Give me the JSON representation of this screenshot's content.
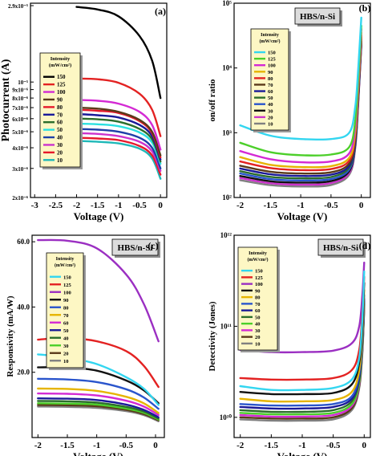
{
  "figure": {
    "panels": [
      {
        "id": "a",
        "panel_label": "(a)",
        "tag": "",
        "xlabel": "Voltage (V)",
        "ylabel": "Photocurrent (A)",
        "xticks": [
          "-3",
          "-2.5",
          "-2",
          "-1.5",
          "-1",
          "-0.5",
          "0"
        ],
        "yticks": [
          "2.9x10⁻⁵",
          "10⁻⁵",
          "9x10⁻⁶",
          "8x10⁻⁶",
          "7x10⁻⁶",
          "6x10⁻⁶",
          "5x10⁻⁶",
          "4x10⁻⁶",
          "3x10⁻⁶",
          "2x10⁻⁶"
        ],
        "legend_title": [
          "Intensity",
          "(mW/cm²)"
        ]
      },
      {
        "id": "b",
        "panel_label": "(b)",
        "tag": "HBS/n-Si",
        "xlabel": "Voltage (V)",
        "ylabel": "on/off ratio",
        "xticks": [
          "-2",
          "-1.5",
          "-1",
          "-0.5",
          "0"
        ],
        "yticks": [
          "10⁵",
          "10⁴",
          "10³",
          "10²"
        ],
        "legend_title": [
          "Intensity",
          "(mW/cm²)"
        ]
      },
      {
        "id": "c",
        "panel_label": "(c)",
        "tag": "HBS/n-Si",
        "xlabel": "Voltage (V)",
        "ylabel": "Responsivity (mA/W)",
        "xticks": [
          "-2",
          "-1.5",
          "-1",
          "-0.5",
          "0"
        ],
        "yticks": [
          "60.0",
          "40.0",
          "20.0"
        ],
        "legend_title": [
          "Intensity",
          "(mW/cm²)"
        ]
      },
      {
        "id": "d",
        "panel_label": "(d)",
        "tag": "HBS/n-Si",
        "xlabel": "Voltage (V)",
        "ylabel": "Detectivity (Jones)",
        "xticks": [
          "-2",
          "-1.5",
          "-1",
          "-0.5",
          "0"
        ],
        "yticks": [
          "10¹²",
          "10¹¹",
          "10¹⁰"
        ],
        "legend_title": [
          "Intensity",
          "(mW/cm²)"
        ]
      }
    ]
  },
  "chart_data": [
    {
      "type": "line",
      "panel": "a",
      "xlabel": "Voltage (V)",
      "ylabel": "Photocurrent (A)",
      "xlim": [
        -3.1,
        0.15
      ],
      "yscale": "log",
      "ylim": [
        2e-06,
        3e-05
      ],
      "legend_title": "Intensity (mW/cm²)",
      "x": [
        -2.0,
        -1.5,
        -1.0,
        -0.5,
        -0.2,
        0.0
      ],
      "series": [
        {
          "name": "150",
          "color": "#000000",
          "values": [
            2.85e-05,
            2.75e-05,
            2.5e-05,
            1.9e-05,
            1.35e-05,
            8e-06
          ]
        },
        {
          "name": "125",
          "color": "#e32222",
          "values": [
            1.05e-05,
            1.04e-05,
            9.9e-06,
            8.5e-06,
            6.8e-06,
            4.7e-06
          ]
        },
        {
          "name": "100",
          "color": "#d42ad4",
          "values": [
            7.8e-06,
            7.7e-06,
            7.4e-06,
            6.6e-06,
            5.5e-06,
            3.9e-06
          ]
        },
        {
          "name": "90",
          "color": "#5a3a1a",
          "values": [
            7e-06,
            6.9e-06,
            6.6e-06,
            5.9e-06,
            5e-06,
            3.6e-06
          ]
        },
        {
          "name": "80",
          "color": "#e6192b",
          "values": [
            6.8e-06,
            6.7e-06,
            6.5e-06,
            5.8e-06,
            4.9e-06,
            3.5e-06
          ]
        },
        {
          "name": "70",
          "color": "#1a1a99",
          "values": [
            6.4e-06,
            6.3e-06,
            6.1e-06,
            5.5e-06,
            4.7e-06,
            3.4e-06
          ]
        },
        {
          "name": "60",
          "color": "#2c6e2c",
          "values": [
            6e-06,
            5.95e-06,
            5.75e-06,
            5.2e-06,
            4.5e-06,
            3.3e-06
          ]
        },
        {
          "name": "50",
          "color": "#2ce0e0",
          "values": [
            5.6e-06,
            5.55e-06,
            5.4e-06,
            4.95e-06,
            4.3e-06,
            3.2e-06
          ]
        },
        {
          "name": "40",
          "color": "#1f3fa8",
          "values": [
            5.2e-06,
            5.15e-06,
            5e-06,
            4.6e-06,
            4e-06,
            3e-06
          ]
        },
        {
          "name": "30",
          "color": "#cc33cc",
          "values": [
            4.9e-06,
            4.85e-06,
            4.7e-06,
            4.35e-06,
            3.8e-06,
            2.9e-06
          ]
        },
        {
          "name": "20",
          "color": "#e6192b",
          "values": [
            4.6e-06,
            4.55e-06,
            4.45e-06,
            4.1e-06,
            3.6e-06,
            2.75e-06
          ]
        },
        {
          "name": "10",
          "color": "#1fb8b8",
          "values": [
            4.4e-06,
            4.35e-06,
            4.25e-06,
            3.95e-06,
            3.45e-06,
            2.6e-06
          ]
        }
      ]
    },
    {
      "type": "line",
      "panel": "b",
      "xlabel": "Voltage (V)",
      "ylabel": "on/off ratio",
      "xlim": [
        -2.1,
        0.15
      ],
      "yscale": "log",
      "ylim": [
        100,
        100000
      ],
      "legend_title": "Intensity (mW/cm²)",
      "x": [
        -2.0,
        -1.5,
        -1.0,
        -0.5,
        -0.2,
        -0.1,
        -0.05,
        0.0
      ],
      "series": [
        {
          "name": "150",
          "color": "#33d6f0",
          "values": [
            1300,
            900,
            800,
            800,
            1000,
            2500,
            10000,
            60000
          ]
        },
        {
          "name": "125",
          "color": "#4ccf2a",
          "values": [
            700,
            500,
            450,
            460,
            600,
            1500,
            7000,
            45000
          ]
        },
        {
          "name": "100",
          "color": "#d42ad4",
          "values": [
            520,
            390,
            350,
            360,
            480,
            1200,
            6000,
            40000
          ]
        },
        {
          "name": "90",
          "color": "#e6b400",
          "values": [
            420,
            320,
            295,
            305,
            410,
            1000,
            5000,
            35000
          ]
        },
        {
          "name": "80",
          "color": "#e32222",
          "values": [
            360,
            285,
            265,
            275,
            370,
            900,
            4500,
            32000
          ]
        },
        {
          "name": "70",
          "color": "#5a3a1a",
          "values": [
            310,
            250,
            235,
            245,
            335,
            820,
            4100,
            30000
          ]
        },
        {
          "name": "60",
          "color": "#1a1a99",
          "values": [
            280,
            228,
            215,
            225,
            310,
            760,
            3800,
            28000
          ]
        },
        {
          "name": "50",
          "color": "#2c6e2c",
          "values": [
            255,
            208,
            198,
            207,
            290,
            710,
            3600,
            26000
          ]
        },
        {
          "name": "40",
          "color": "#2a55cc",
          "values": [
            235,
            192,
            183,
            192,
            270,
            670,
            3400,
            25000
          ]
        },
        {
          "name": "30",
          "color": "#111111",
          "values": [
            215,
            178,
            170,
            179,
            255,
            640,
            3200,
            24000
          ]
        },
        {
          "name": "20",
          "color": "#cc33cc",
          "values": [
            200,
            166,
            158,
            167,
            240,
            610,
            3000,
            23000
          ]
        },
        {
          "name": "10",
          "color": "#808080",
          "values": [
            185,
            155,
            148,
            156,
            226,
            580,
            2900,
            22000
          ]
        }
      ]
    },
    {
      "type": "line",
      "panel": "c",
      "xlabel": "Voltage (V)",
      "ylabel": "Responsivity (mA/W)",
      "xlim": [
        -2.1,
        0.15
      ],
      "ylim": [
        0,
        62
      ],
      "legend_title": "Intensity (mW/cm²)",
      "x": [
        -2.0,
        -1.5,
        -1.0,
        -0.5,
        -0.2,
        0.05
      ],
      "series": [
        {
          "name": "150",
          "color": "#33d6f0",
          "values": [
            25.5,
            24.5,
            22.5,
            18.5,
            15.0,
            10.0
          ]
        },
        {
          "name": "125",
          "color": "#e32222",
          "values": [
            30.0,
            30.5,
            29.5,
            26.5,
            22.0,
            15.5
          ]
        },
        {
          "name": "100",
          "color": "#9b2fc2",
          "values": [
            60.5,
            60.3,
            58.0,
            50.0,
            41.0,
            29.5
          ]
        },
        {
          "name": "90",
          "color": "#111111",
          "values": [
            21.5,
            21.5,
            20.5,
            17.5,
            14.5,
            10.5
          ]
        },
        {
          "name": "80",
          "color": "#2a55cc",
          "values": [
            18.0,
            17.8,
            17.0,
            14.8,
            12.3,
            8.8
          ]
        },
        {
          "name": "70",
          "color": "#e6b400",
          "values": [
            15.0,
            14.9,
            14.3,
            12.5,
            10.5,
            7.5
          ]
        },
        {
          "name": "60",
          "color": "#d42ad4",
          "values": [
            13.5,
            13.4,
            12.9,
            11.3,
            9.5,
            6.9
          ]
        },
        {
          "name": "50",
          "color": "#1a1a99",
          "values": [
            12.0,
            11.9,
            11.5,
            10.1,
            8.5,
            6.2
          ]
        },
        {
          "name": "40",
          "color": "#2c6e2c",
          "values": [
            11.2,
            11.1,
            10.7,
            9.4,
            8.0,
            5.8
          ]
        },
        {
          "name": "30",
          "color": "#4ccf2a",
          "values": [
            10.5,
            10.4,
            10.1,
            8.9,
            7.6,
            5.5
          ]
        },
        {
          "name": "20",
          "color": "#5a3a1a",
          "values": [
            10.0,
            9.9,
            9.6,
            8.5,
            7.2,
            5.3
          ]
        },
        {
          "name": "10",
          "color": "#808080",
          "values": [
            9.5,
            9.4,
            9.1,
            8.1,
            6.9,
            5.0
          ]
        }
      ]
    },
    {
      "type": "line",
      "panel": "d",
      "xlabel": "Voltage (V)",
      "ylabel": "Detectivity (Jones)",
      "xlim": [
        -2.1,
        0.1
      ],
      "yscale": "log",
      "ylim": [
        6000000000.0,
        1000000000000.0
      ],
      "legend_title": "Intensity (mW/cm²)",
      "x": [
        -2.0,
        -1.5,
        -1.0,
        -0.5,
        -0.2,
        -0.08,
        -0.03,
        0.0
      ],
      "series": [
        {
          "name": "150",
          "color": "#33d6f0",
          "values": [
            22000000000.0,
            20000000000.0,
            20000000000.0,
            21000000000.0,
            26000000000.0,
            45000000000.0,
            120000000000.0,
            400000000000.0
          ]
        },
        {
          "name": "125",
          "color": "#e32222",
          "values": [
            27000000000.0,
            26000000000.0,
            26000000000.0,
            27000000000.0,
            33000000000.0,
            55000000000.0,
            140000000000.0,
            350000000000.0
          ]
        },
        {
          "name": "100",
          "color": "#9b2fc2",
          "values": [
            55000000000.0,
            52000000000.0,
            52000000000.0,
            54000000000.0,
            65000000000.0,
            100000000000.0,
            220000000000.0,
            500000000000.0
          ]
        },
        {
          "name": "90",
          "color": "#111111",
          "values": [
            19000000000.0,
            18000000000.0,
            18000000000.0,
            18500000000.0,
            23000000000.0,
            40000000000.0,
            100000000000.0,
            300000000000.0
          ]
        },
        {
          "name": "80",
          "color": "#e6b400",
          "values": [
            16000000000.0,
            15000000000.0,
            15000000000.0,
            15500000000.0,
            19000000000.0,
            33000000000.0,
            85000000000.0,
            250000000000.0
          ]
        },
        {
          "name": "70",
          "color": "#2a55cc",
          "values": [
            14000000000.0,
            13500000000.0,
            13500000000.0,
            14000000000.0,
            17000000000.0,
            30000000000.0,
            75000000000.0,
            220000000000.0
          ]
        },
        {
          "name": "60",
          "color": "#1a1a99",
          "values": [
            13000000000.0,
            12500000000.0,
            12500000000.0,
            13000000000.0,
            16000000000.0,
            28000000000.0,
            70000000000.0,
            200000000000.0
          ]
        },
        {
          "name": "50",
          "color": "#2c6e2c",
          "values": [
            12000000000.0,
            11500000000.0,
            11500000000.0,
            12000000000.0,
            15000000000.0,
            26000000000.0,
            65000000000.0,
            190000000000.0
          ]
        },
        {
          "name": "40",
          "color": "#4ccf2a",
          "values": [
            11200000000.0,
            10800000000.0,
            10800000000.0,
            11200000000.0,
            14000000000.0,
            24000000000.0,
            60000000000.0,
            180000000000.0
          ]
        },
        {
          "name": "30",
          "color": "#d42ad4",
          "values": [
            10600000000.0,
            10200000000.0,
            10200000000.0,
            10600000000.0,
            13300000000.0,
            23000000000.0,
            57000000000.0,
            170000000000.0
          ]
        },
        {
          "name": "20",
          "color": "#5a3a1a",
          "values": [
            10000000000.0,
            9700000000.0,
            9700000000.0,
            10000000000.0,
            12600000000.0,
            22000000000.0,
            54000000000.0,
            160000000000.0
          ]
        },
        {
          "name": "10",
          "color": "#808080",
          "values": [
            9500000000.0,
            9200000000.0,
            9200000000.0,
            9500000000.0,
            12000000000.0,
            21000000000.0,
            51000000000.0,
            150000000000.0
          ]
        }
      ]
    }
  ]
}
